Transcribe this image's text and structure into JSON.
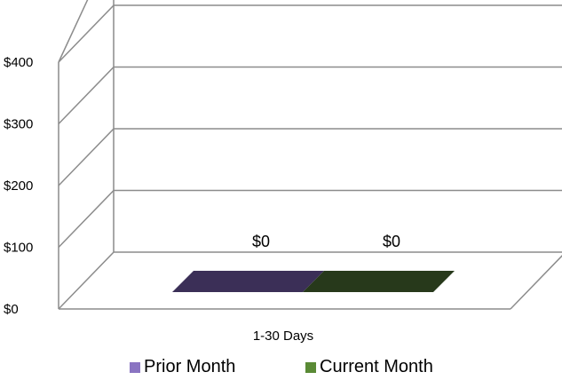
{
  "chart_data": {
    "type": "bar",
    "categories": [
      "1-30 Days"
    ],
    "series": [
      {
        "name": "Prior Month",
        "values": [
          0
        ],
        "color": "#3b2f57",
        "swatch": "#8a74c2"
      },
      {
        "name": "Current Month",
        "values": [
          0
        ],
        "color": "#27391b",
        "swatch": "#5a8a35"
      }
    ],
    "data_labels": [
      "$0",
      "$0"
    ],
    "y_ticks": [
      {
        "value": 0,
        "label": "$0"
      },
      {
        "value": 100,
        "label": "$100"
      },
      {
        "value": 200,
        "label": "$200"
      },
      {
        "value": 300,
        "label": "$300"
      },
      {
        "value": 400,
        "label": "$400"
      }
    ],
    "ylim": [
      0,
      500
    ],
    "grid": true,
    "three_d": true,
    "legend_position": "bottom",
    "title": "",
    "xlabel": "",
    "ylabel": ""
  }
}
